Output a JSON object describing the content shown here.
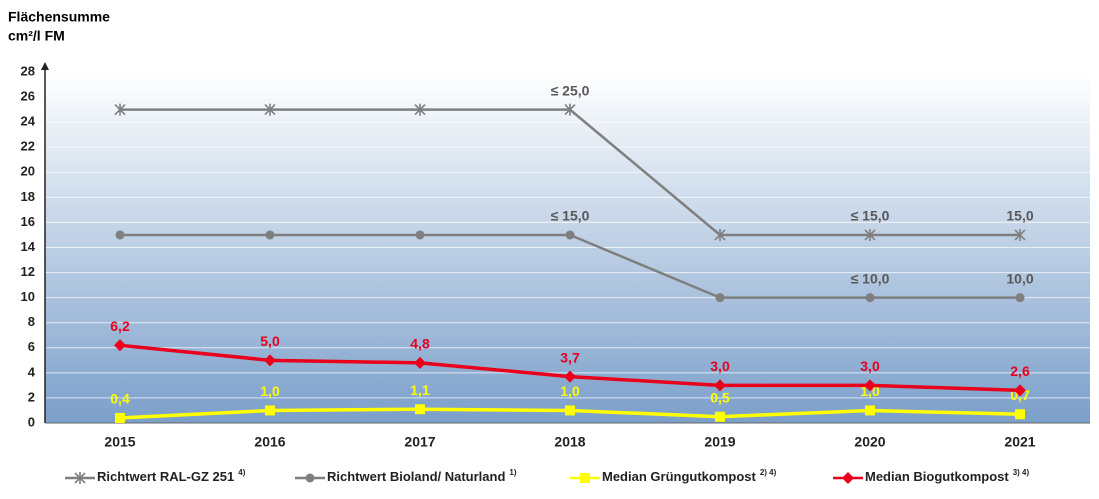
{
  "chart_data": {
    "type": "line",
    "ylabel": [
      "Flächensumme",
      "cm²/l FM"
    ],
    "categories": [
      "2015",
      "2016",
      "2017",
      "2018",
      "2019",
      "2020",
      "2021"
    ],
    "ylim": [
      0,
      28
    ],
    "yticks": [
      0,
      2,
      4,
      6,
      8,
      10,
      12,
      14,
      16,
      18,
      20,
      22,
      24,
      26,
      28
    ],
    "grid": true,
    "series": [
      {
        "name": "Richtwert RAL-GZ 251",
        "superscript": "4)",
        "color": "#7f7f7f",
        "label_color": "#595959",
        "marker": "asterisk",
        "values": [
          25,
          25,
          25,
          25,
          15,
          15,
          15
        ],
        "value_labels": [
          null,
          null,
          null,
          "≤ 25,0",
          null,
          "≤ 15,0",
          "15,0"
        ]
      },
      {
        "name": "Richtwert Bioland/ Naturland",
        "superscript": "1)",
        "color": "#7f7f7f",
        "label_color": "#595959",
        "marker": "circle",
        "values": [
          15,
          15,
          15,
          15,
          10,
          10,
          10
        ],
        "value_labels": [
          null,
          null,
          null,
          "≤ 15,0",
          null,
          "≤ 10,0",
          "10,0"
        ]
      },
      {
        "name": "Median Grüngutkompost",
        "superscript": "2) 4)",
        "color": "#ffff00",
        "label_color": "#ffff00",
        "marker": "square",
        "values": [
          0.4,
          1.0,
          1.1,
          1.0,
          0.5,
          1.0,
          0.7
        ],
        "value_labels": [
          "0,4",
          "1,0",
          "1,1",
          "1,0",
          "0,5",
          "1,0",
          "0,7"
        ]
      },
      {
        "name": "Median Biogutkompost",
        "superscript": "3) 4)",
        "color": "#e8001c",
        "label_color": "#e8001c",
        "marker": "diamond",
        "values": [
          6.2,
          5.0,
          4.8,
          3.7,
          3.0,
          3.0,
          2.6
        ],
        "value_labels": [
          "6,2",
          "5,0",
          "4,8",
          "3,7",
          "3,0",
          "3,0",
          "2,6"
        ]
      }
    ]
  }
}
